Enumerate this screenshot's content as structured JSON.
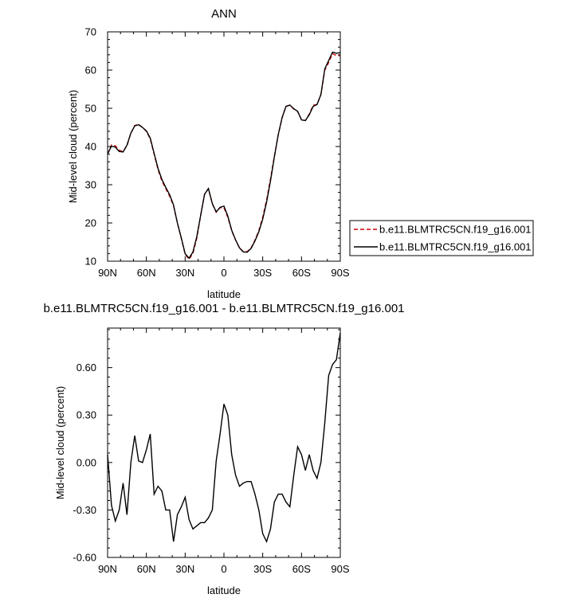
{
  "chart_data": [
    {
      "type": "line",
      "title": "ANN",
      "xlabel": "latitude",
      "ylabel": "Mid-level cloud (percent)",
      "xlim": [
        90,
        -90
      ],
      "ylim": [
        10,
        70
      ],
      "xticks": [
        90,
        60,
        30,
        0,
        -30,
        -60,
        -90
      ],
      "xtick_labels": [
        "90N",
        "60N",
        "30N",
        "0",
        "30S",
        "60S",
        "90S"
      ],
      "yticks": [
        10,
        20,
        30,
        40,
        50,
        60,
        70
      ],
      "ytick_labels": [
        "10",
        "20",
        "30",
        "40",
        "50",
        "60",
        "70"
      ],
      "grid": false,
      "legend_position": "right",
      "series": [
        {
          "name": "b.e11.BLMTRC5CN.f19_g16.001",
          "color": "#cc0000",
          "dash": "dashed",
          "x": [
            90,
            87,
            84,
            81,
            78,
            75,
            72,
            69,
            66,
            63,
            60,
            57,
            54,
            51,
            48,
            45,
            42,
            39,
            36,
            33,
            30,
            27,
            24,
            21,
            18,
            15,
            12,
            9,
            6,
            3,
            0,
            -3,
            -6,
            -9,
            -12,
            -15,
            -18,
            -21,
            -24,
            -27,
            -30,
            -33,
            -36,
            -39,
            -42,
            -45,
            -48,
            -51,
            -54,
            -57,
            -60,
            -63,
            -66,
            -69,
            -72,
            -75,
            -78,
            -81,
            -84,
            -87,
            -90
          ],
          "values": [
            38.0,
            40.4,
            40.2,
            39.0,
            38.7,
            40.2,
            43.5,
            45.5,
            45.8,
            45.0,
            44.0,
            42.0,
            38.0,
            34.0,
            31.0,
            29.0,
            27.0,
            24.5,
            20.0,
            16.0,
            11.8,
            10.5,
            12.0,
            16.0,
            22.0,
            27.5,
            29.0,
            25.0,
            22.8,
            24.0,
            24.0,
            21.5,
            18.0,
            15.5,
            13.5,
            12.5,
            12.5,
            13.5,
            15.5,
            18.0,
            21.5,
            26.0,
            31.5,
            37.5,
            43.0,
            47.5,
            50.5,
            50.8,
            49.8,
            49.2,
            47.0,
            46.8,
            48.5,
            50.8,
            51.0,
            53.5,
            60.0,
            62.0,
            64.3,
            63.8,
            63.8
          ]
        },
        {
          "name": "b.e11.BLMTRC5CN.f19_g16.001",
          "color": "#000000",
          "dash": "solid",
          "x": [
            90,
            87,
            84,
            81,
            78,
            75,
            72,
            69,
            66,
            63,
            60,
            57,
            54,
            51,
            48,
            45,
            42,
            39,
            36,
            33,
            30,
            27,
            24,
            21,
            18,
            15,
            12,
            9,
            6,
            3,
            0,
            -3,
            -6,
            -9,
            -12,
            -15,
            -18,
            -21,
            -24,
            -27,
            -30,
            -33,
            -36,
            -39,
            -42,
            -45,
            -48,
            -51,
            -54,
            -57,
            -60,
            -63,
            -66,
            -69,
            -72,
            -75,
            -78,
            -81,
            -84,
            -87,
            -90
          ],
          "values": [
            38.05,
            40.1,
            39.85,
            38.7,
            38.57,
            40.37,
            43.5,
            45.4,
            45.7,
            45.0,
            44.1,
            42.2,
            38.2,
            34.3,
            31.4,
            29.3,
            27.4,
            24.7,
            20.0,
            16.1,
            11.95,
            10.8,
            12.4,
            16.4,
            22.0,
            27.5,
            29.0,
            25.1,
            22.9,
            24.1,
            24.4,
            21.8,
            18.1,
            15.6,
            13.5,
            12.4,
            12.35,
            13.35,
            15.3,
            17.7,
            21.0,
            25.5,
            31.0,
            37.25,
            43.1,
            47.6,
            50.5,
            50.85,
            49.9,
            49.2,
            46.95,
            46.8,
            48.3,
            50.5,
            51.0,
            53.6,
            60.3,
            62.5,
            64.7,
            64.4,
            64.6
          ]
        }
      ]
    },
    {
      "type": "line",
      "title": "b.e11.BLMTRC5CN.f19_g16.001 - b.e11.BLMTRC5CN.f19_g16.001",
      "xlabel": "latitude",
      "ylabel": "Mid-level cloud (percent)",
      "xlim": [
        90,
        -90
      ],
      "ylim": [
        -0.6,
        0.85
      ],
      "xticks": [
        90,
        60,
        30,
        0,
        -30,
        -60,
        -90
      ],
      "xtick_labels": [
        "90N",
        "60N",
        "30N",
        "0",
        "30S",
        "60S",
        "90S"
      ],
      "yticks": [
        -0.6,
        -0.3,
        0,
        0.3,
        0.6
      ],
      "ytick_labels": [
        "-0.60",
        "-0.30",
        "0.00",
        "0.30",
        "0.60"
      ],
      "grid": false,
      "series": [
        {
          "color": "#000000",
          "dash": "solid",
          "x": [
            90,
            87,
            84,
            81,
            78,
            75,
            72,
            69,
            66,
            63,
            60,
            57,
            54,
            51,
            48,
            45,
            42,
            39,
            36,
            33,
            30,
            27,
            24,
            21,
            18,
            15,
            12,
            9,
            6,
            3,
            0,
            -3,
            -6,
            -9,
            -12,
            -15,
            -18,
            -21,
            -24,
            -27,
            -30,
            -33,
            -36,
            -39,
            -42,
            -45,
            -48,
            -51,
            -54,
            -57,
            -60,
            -63,
            -66,
            -69,
            -72,
            -75,
            -78,
            -81,
            -84,
            -87,
            -90
          ],
          "values": [
            0.05,
            -0.27,
            -0.37,
            -0.3,
            -0.13,
            -0.33,
            0.0,
            0.17,
            0.01,
            0.0,
            0.08,
            0.18,
            -0.2,
            -0.15,
            -0.18,
            -0.3,
            -0.3,
            -0.5,
            -0.33,
            -0.28,
            -0.22,
            -0.36,
            -0.42,
            -0.4,
            -0.38,
            -0.38,
            -0.35,
            -0.3,
            0.01,
            0.18,
            0.37,
            0.3,
            0.05,
            -0.08,
            -0.15,
            -0.13,
            -0.12,
            -0.12,
            -0.2,
            -0.3,
            -0.45,
            -0.5,
            -0.42,
            -0.25,
            -0.2,
            -0.2,
            -0.25,
            -0.28,
            -0.08,
            0.1,
            0.05,
            -0.05,
            0.05,
            -0.05,
            -0.1,
            0.0,
            0.25,
            0.55,
            0.62,
            0.65,
            0.82
          ]
        }
      ]
    }
  ]
}
